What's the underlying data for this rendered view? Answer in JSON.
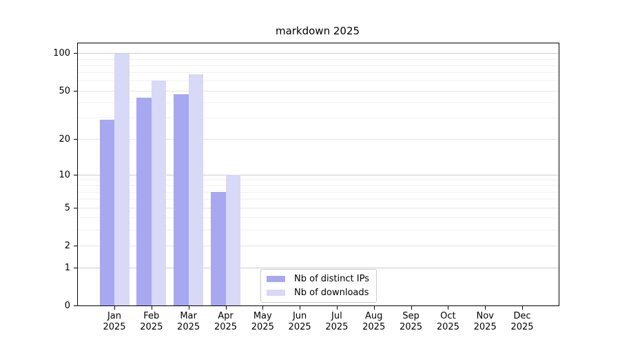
{
  "chart_data": {
    "type": "bar",
    "title": "markdown 2025",
    "categories": [
      "Jan",
      "Feb",
      "Mar",
      "Apr",
      "May",
      "Jun",
      "Jul",
      "Aug",
      "Sep",
      "Oct",
      "Nov",
      "Dec"
    ],
    "x_tick_year": "2025",
    "series": [
      {
        "name": "Nb of distinct IPs",
        "color": "#a8a8f0",
        "values": [
          29,
          44,
          47,
          7,
          null,
          null,
          null,
          null,
          null,
          null,
          null,
          null
        ]
      },
      {
        "name": "Nb of downloads",
        "color": "#d8d8f7",
        "values": [
          99,
          60,
          68,
          10,
          null,
          null,
          null,
          null,
          null,
          null,
          null,
          null
        ]
      }
    ],
    "yscale": "log1p",
    "ylim": [
      0,
      120
    ],
    "ytick_labels": [
      "0",
      "1",
      "2",
      "5",
      "10",
      "20",
      "50",
      "100"
    ],
    "ytick_values": [
      0,
      1,
      2,
      5,
      10,
      20,
      50,
      100
    ],
    "major_gridline_values": [
      1,
      10,
      100
    ],
    "secondary_gridline_values": [
      2,
      5,
      20,
      50
    ],
    "minor_gridline_values": [
      3,
      4,
      6,
      7,
      8,
      9,
      30,
      40,
      60,
      70,
      80,
      90
    ],
    "legend_position": "lower center, inside axes",
    "grid": "horizontal only"
  },
  "colors": {
    "axis_frame": "#000000",
    "text": "#000000",
    "grid_major": "#cccccc",
    "grid_secondary": "#e4e4e4",
    "grid_minor": "#f1f1f1",
    "legend_border": "#c9c9c9",
    "background": "#ffffff"
  }
}
